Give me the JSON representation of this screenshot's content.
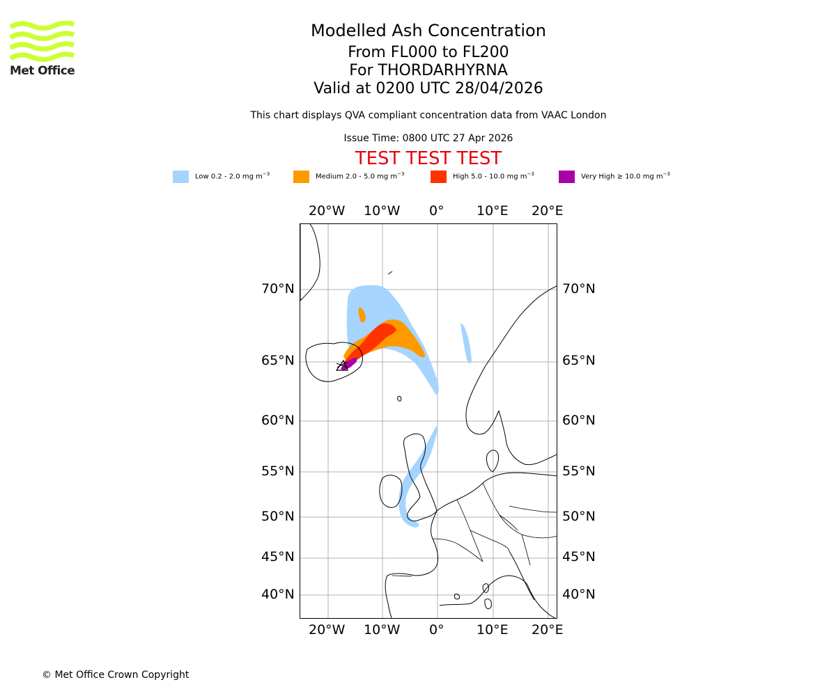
{
  "logo": {
    "text": "Met Office",
    "color": "#ccff33"
  },
  "header": {
    "title": "Modelled Ash Concentration",
    "level_range": "From FL000 to FL200",
    "volcano": "For THORDARHYRNA",
    "valid_time": "Valid at 0200 UTC 28/04/2026",
    "description": "This chart displays QVA compliant concentration data from VAAC London",
    "issue_time": "Issue Time: 0800 UTC 27 Apr 2026",
    "test_banner": "TEST TEST TEST"
  },
  "legend": [
    {
      "label": "Low 0.2 - 2.0 mg m",
      "color": "#a5d5ff"
    },
    {
      "label": "Medium 2.0 - 5.0 mg m",
      "color": "#ff9900"
    },
    {
      "label": "High 5.0 - 10.0 mg m",
      "color": "#ff3300"
    },
    {
      "label": "Very High ≥ 10.0 mg m",
      "color": "#aa00aa"
    }
  ],
  "legend_unit_exp": "−3",
  "map": {
    "lon_ticks": [
      "20°W",
      "10°W",
      "0°",
      "10°E",
      "20°E"
    ],
    "lat_ticks": [
      "70°N",
      "65°N",
      "60°N",
      "55°N",
      "50°N",
      "45°N",
      "40°N"
    ],
    "extent": {
      "lon": [
        -25,
        22
      ],
      "lat": [
        37,
        74
      ]
    },
    "gridlines": true,
    "source_marker": {
      "lon": -17,
      "lat": 64.6
    }
  },
  "footer": {
    "copyright": "© Met Office Crown Copyright"
  }
}
